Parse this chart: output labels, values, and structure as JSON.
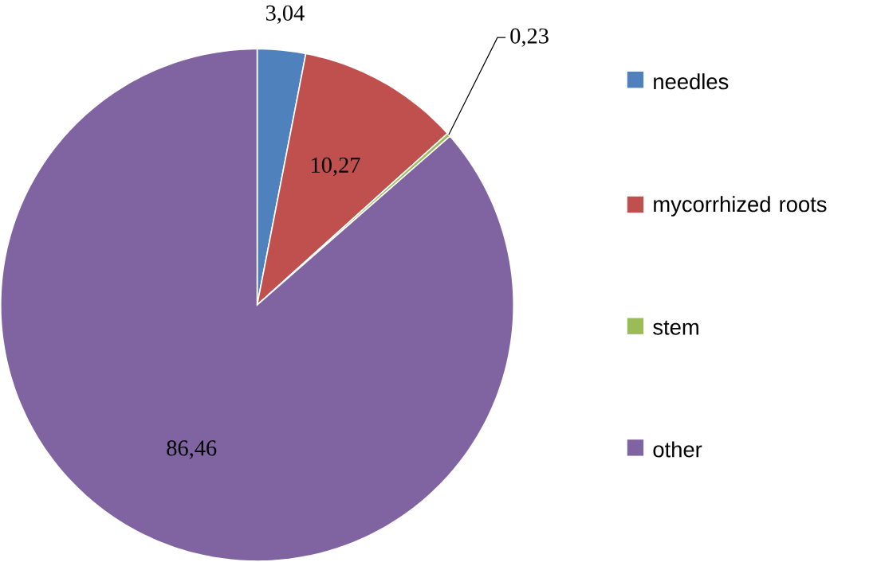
{
  "chart_data": {
    "type": "pie",
    "categories": [
      "needles",
      "mycorrhized roots",
      "stem",
      "other"
    ],
    "values": [
      3.04,
      10.27,
      0.23,
      86.46
    ],
    "colors": [
      "#4f81bd",
      "#c0504d",
      "#9bbb59",
      "#8064a2"
    ],
    "value_labels": [
      "3,04",
      "10,27",
      "0,23",
      "86,46"
    ],
    "legend": "right"
  }
}
